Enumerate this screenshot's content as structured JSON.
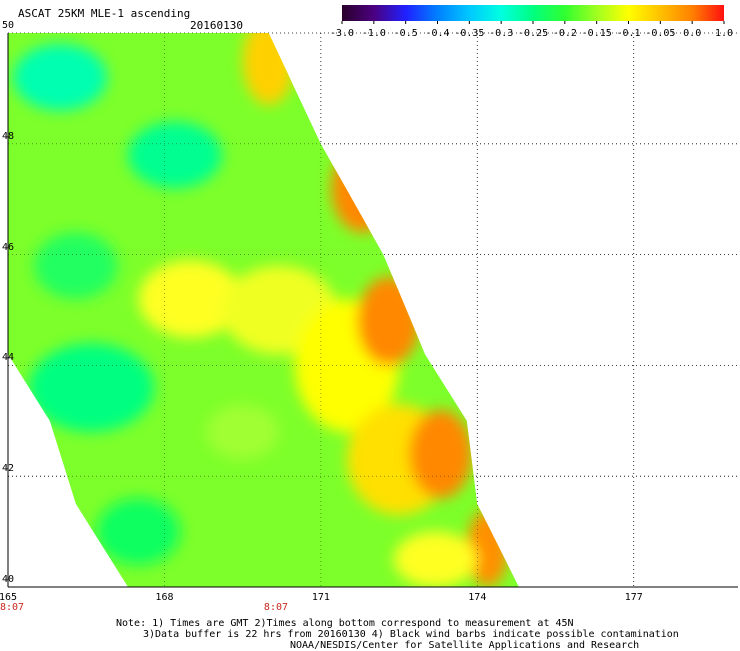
{
  "header": {
    "title": "ASCAT 25KM MLE-1 ascending",
    "date": "20160130"
  },
  "colorbar": {
    "labels": [
      "-3.0",
      "-1.0",
      "-0.5",
      "-0.4",
      "-0.35",
      "-0.3",
      "-0.25",
      "-0.2",
      "-0.15",
      "-0.1",
      "-0.05",
      "0.0",
      "1.0"
    ],
    "colors": [
      "#2a002a",
      "#4b0080",
      "#2020ff",
      "#0080ff",
      "#00c8ff",
      "#00ffe0",
      "#00ff80",
      "#30ff30",
      "#a0ff20",
      "#ffff00",
      "#ffc000",
      "#ff8000",
      "#ff1010"
    ]
  },
  "map": {
    "lon_range": [
      165,
      179
    ],
    "lat_range": [
      40,
      50
    ],
    "lat_ticks": [
      "50",
      "48",
      "46",
      "44",
      "42",
      "40"
    ],
    "lon_ticks": [
      "165",
      "168",
      "171",
      "174",
      "177"
    ],
    "time_labels": [
      {
        "lon": 165,
        "text": "8:07"
      },
      {
        "lon": 170.1,
        "text": "8:07"
      }
    ],
    "swath_edges": [
      {
        "lat": 50.0,
        "west": 165.0,
        "east": 170.0
      },
      {
        "lat": 48.0,
        "west": 165.0,
        "east": 171.0
      },
      {
        "lat": 46.0,
        "west": 165.0,
        "east": 172.2
      },
      {
        "lat": 44.2,
        "west": 165.0,
        "east": 173.0
      },
      {
        "lat": 43.0,
        "west": 165.8,
        "east": 173.8
      },
      {
        "lat": 41.5,
        "west": 166.3,
        "east": 174.0
      },
      {
        "lat": 40.0,
        "west": 167.3,
        "east": 174.8
      }
    ],
    "regions": [
      {
        "lon": 166.0,
        "lat": 49.2,
        "rx": 0.9,
        "ry": 0.6,
        "color": "#00ffb0"
      },
      {
        "lon": 168.2,
        "lat": 47.8,
        "rx": 0.9,
        "ry": 0.6,
        "color": "#00ff90"
      },
      {
        "lon": 166.3,
        "lat": 45.8,
        "rx": 0.8,
        "ry": 0.6,
        "color": "#20ff60"
      },
      {
        "lon": 166.6,
        "lat": 43.6,
        "rx": 1.2,
        "ry": 0.8,
        "color": "#00ff80"
      },
      {
        "lon": 167.5,
        "lat": 41.0,
        "rx": 0.8,
        "ry": 0.6,
        "color": "#10ff60"
      },
      {
        "lon": 168.5,
        "lat": 45.2,
        "rx": 1.0,
        "ry": 0.7,
        "color": "#ffff20"
      },
      {
        "lon": 170.2,
        "lat": 45.0,
        "rx": 1.1,
        "ry": 0.8,
        "color": "#f0ff20"
      },
      {
        "lon": 170.0,
        "lat": 49.5,
        "rx": 0.5,
        "ry": 0.8,
        "color": "#ffd000"
      },
      {
        "lon": 171.5,
        "lat": 44.0,
        "rx": 1.0,
        "ry": 1.2,
        "color": "#ffff00"
      },
      {
        "lon": 172.5,
        "lat": 42.3,
        "rx": 1.0,
        "ry": 1.0,
        "color": "#ffe000"
      },
      {
        "lon": 169.5,
        "lat": 42.8,
        "rx": 0.7,
        "ry": 0.5,
        "color": "#a0ff30"
      },
      {
        "lon": 171.8,
        "lat": 47.2,
        "rx": 0.6,
        "ry": 0.8,
        "color": "#ff8800"
      },
      {
        "lon": 172.3,
        "lat": 44.8,
        "rx": 0.6,
        "ry": 0.8,
        "color": "#ff8800"
      },
      {
        "lon": 173.3,
        "lat": 42.4,
        "rx": 0.6,
        "ry": 0.8,
        "color": "#ff8800"
      },
      {
        "lon": 174.2,
        "lat": 40.7,
        "rx": 0.4,
        "ry": 0.7,
        "color": "#ff9000"
      },
      {
        "lon": 173.2,
        "lat": 40.5,
        "rx": 0.8,
        "ry": 0.5,
        "color": "#ffff20"
      }
    ]
  },
  "notes": {
    "line1": "Note: 1) Times are GMT 2)Times along bottom correspond to measurement at 45N",
    "line2": "3)Data buffer is 22 hrs from 20160130 4) Black wind barbs indicate possible contamination",
    "line3": "NOAA/NESDIS/Center for Satellite Applications and Research"
  }
}
